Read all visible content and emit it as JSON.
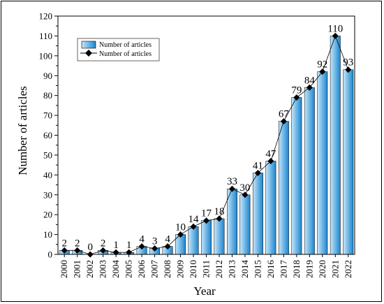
{
  "chart_data": {
    "type": "bar",
    "categories": [
      "2000",
      "2001",
      "2002",
      "2003",
      "2004",
      "2005",
      "2006",
      "2007",
      "2008",
      "2009",
      "2010",
      "2011",
      "2012",
      "2013",
      "2014",
      "2015",
      "2016",
      "2017",
      "2018",
      "2019",
      "2020",
      "2021",
      "2022"
    ],
    "series": [
      {
        "name": "Number of articles",
        "type": "bar",
        "values": [
          2,
          2,
          0,
          2,
          1,
          1,
          4,
          3,
          4,
          10,
          14,
          17,
          18,
          33,
          30,
          41,
          47,
          67,
          79,
          84,
          92,
          110,
          93
        ]
      },
      {
        "name": "Number of articles",
        "type": "line",
        "values": [
          2,
          2,
          0,
          2,
          1,
          1,
          4,
          3,
          4,
          10,
          14,
          17,
          18,
          33,
          30,
          41,
          47,
          67,
          79,
          84,
          92,
          110,
          93
        ]
      }
    ],
    "data_labels": [
      "2",
      "2",
      "0",
      "2",
      "1",
      "1",
      "4",
      "3",
      "4",
      "10",
      "14",
      "17",
      "18",
      "33",
      "30",
      "41",
      "47",
      "67",
      "79",
      "84",
      "92",
      "110",
      "93"
    ],
    "xlabel": "Year",
    "ylabel": "Number of articles",
    "ylim": [
      0,
      120
    ],
    "yticks": [
      "0",
      "10",
      "20",
      "30",
      "40",
      "50",
      "60",
      "70",
      "80",
      "90",
      "100",
      "110",
      "120"
    ],
    "legend": {
      "placement": "top-left",
      "entries": [
        "Number of articles",
        "Number of articles"
      ]
    },
    "grid": false,
    "colors": {
      "bar_light": "#c6e6fa",
      "bar_dark": "#1a86d0",
      "line": "#000000",
      "marker": "#000000"
    }
  }
}
